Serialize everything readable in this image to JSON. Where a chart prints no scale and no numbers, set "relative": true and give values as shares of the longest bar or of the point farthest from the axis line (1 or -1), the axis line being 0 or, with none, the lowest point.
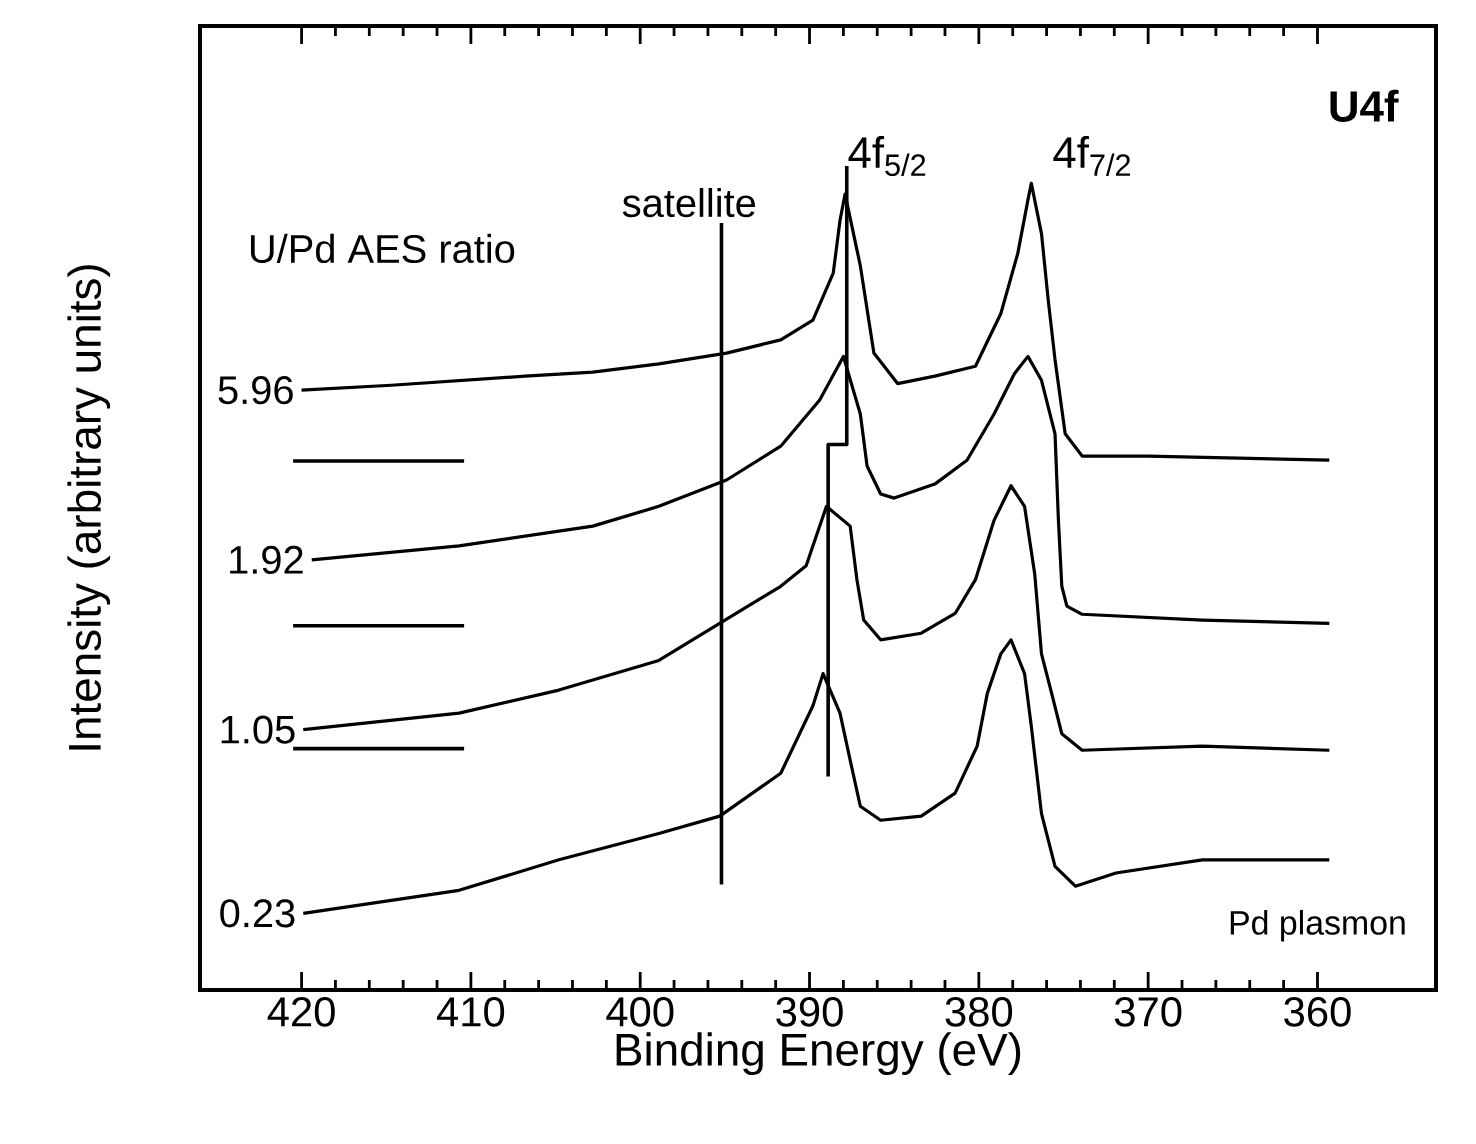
{
  "chart_data": {
    "type": "line",
    "xlabel": "Binding Energy (eV)",
    "ylabel": "Intensity  (arbitrary  units)",
    "relative": true,
    "xlim": [
      426,
      353
    ],
    "xticks": [
      420,
      410,
      400,
      390,
      380,
      370,
      360
    ],
    "annotations": [
      "U/Pd AES ratio",
      "satellite",
      "4f$_{5/2}$",
      "4f$_{7/2}$",
      "U4f",
      "Pd plasmon"
    ],
    "series": [
      {
        "name": "5.96",
        "color": "#000000",
        "x": [
          420.0,
          414.7,
          406.8,
          402.8,
          398.9,
          394.9,
          391.7,
          389.8,
          388.6,
          388.2,
          387.9,
          387.0,
          386.2,
          384.8,
          382.6,
          380.2,
          378.7,
          377.7,
          377.1,
          376.9,
          376.3,
          375.9,
          375.5,
          374.9,
          373.9,
          370.0,
          359.3
        ],
        "values": [
          0.728,
          0.734,
          0.745,
          0.75,
          0.76,
          0.773,
          0.789,
          0.813,
          0.87,
          0.934,
          0.966,
          0.879,
          0.773,
          0.736,
          0.745,
          0.757,
          0.821,
          0.894,
          0.959,
          0.979,
          0.918,
          0.837,
          0.765,
          0.675,
          0.648,
          0.648,
          0.643
        ]
      },
      {
        "name": "1.92",
        "color": "#000000",
        "x": [
          419.4,
          410.7,
          402.8,
          398.9,
          394.9,
          391.7,
          389.4,
          388.0,
          387.0,
          386.6,
          385.8,
          385.0,
          382.6,
          380.7,
          379.1,
          377.9,
          377.1,
          376.3,
          375.5,
          375.3,
          375.1,
          374.8,
          373.9,
          366.8,
          359.3
        ],
        "values": [
          0.522,
          0.539,
          0.563,
          0.587,
          0.619,
          0.66,
          0.716,
          0.769,
          0.699,
          0.636,
          0.602,
          0.597,
          0.614,
          0.643,
          0.699,
          0.748,
          0.769,
          0.74,
          0.675,
          0.57,
          0.49,
          0.466,
          0.456,
          0.449,
          0.445
        ]
      },
      {
        "name": "1.05",
        "color": "#000000",
        "x": [
          419.9,
          410.7,
          404.8,
          398.9,
          395.3,
          391.7,
          390.2,
          389.0,
          387.6,
          387.2,
          386.8,
          385.8,
          383.4,
          381.4,
          380.2,
          379.1,
          378.1,
          377.3,
          376.7,
          376.3,
          375.7,
          375.1,
          373.9,
          366.8,
          359.3
        ],
        "values": [
          0.316,
          0.336,
          0.364,
          0.4,
          0.445,
          0.49,
          0.515,
          0.587,
          0.563,
          0.498,
          0.449,
          0.425,
          0.433,
          0.457,
          0.498,
          0.57,
          0.612,
          0.587,
          0.505,
          0.408,
          0.36,
          0.311,
          0.291,
          0.296,
          0.291
        ]
      },
      {
        "name": "0.23",
        "color": "#000000",
        "x": [
          419.9,
          410.7,
          404.8,
          398.9,
          395.3,
          391.7,
          389.8,
          389.2,
          388.2,
          387.6,
          387.0,
          385.8,
          383.4,
          381.4,
          380.1,
          379.5,
          378.7,
          378.1,
          377.3,
          376.9,
          376.3,
          375.5,
          374.3,
          371.9,
          366.8,
          359.3
        ],
        "values": [
          0.093,
          0.121,
          0.158,
          0.19,
          0.211,
          0.263,
          0.345,
          0.384,
          0.336,
          0.279,
          0.223,
          0.206,
          0.211,
          0.239,
          0.296,
          0.36,
          0.408,
          0.425,
          0.384,
          0.32,
          0.214,
          0.15,
          0.126,
          0.142,
          0.158,
          0.158
        ]
      },
      {
        "color": "#000000",
        "x": [
          420.5,
          410.4
        ],
        "values": [
          0.642,
          0.642
        ]
      },
      {
        "color": "#000000",
        "x": [
          420.5,
          410.4
        ],
        "values": [
          0.442,
          0.442
        ]
      },
      {
        "color": "#000000",
        "x": [
          420.5,
          410.4
        ],
        "values": [
          0.293,
          0.293
        ]
      },
      {
        "color": "#000000",
        "x": [
          395.2,
          395.2
        ],
        "values": [
          0.931,
          0.128
        ]
      },
      {
        "color": "#000000",
        "x": [
          387.8,
          387.8,
          388.9,
          388.9
        ],
        "values": [
          1.0,
          0.662,
          0.662,
          0.259
        ]
      }
    ]
  }
}
